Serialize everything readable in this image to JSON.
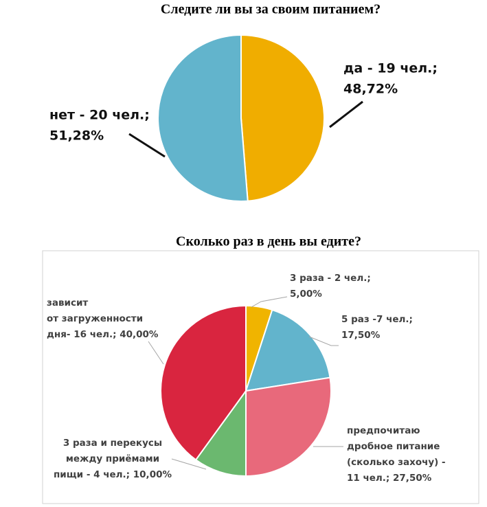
{
  "chart_data": [
    {
      "type": "pie",
      "title": "Следите ли вы за своим питанием?",
      "categories": [
        "да",
        "нет"
      ],
      "values": [
        48.72,
        51.28
      ],
      "value_labels": [
        [
          "да - 19 чел.;",
          "48,72%"
        ],
        [
          "нет - 20 чел.;",
          "51,28%"
        ]
      ],
      "colors": [
        "#f0ad00",
        "#62b4cc"
      ]
    },
    {
      "type": "pie",
      "title": "Сколько раз в день вы едите?",
      "categories": [
        "3 раза",
        "5 раз",
        "предпочитаю дробное питание (сколько захочу)",
        "3 раза и перекусы между приёмами пищи",
        "зависит от загруженности дня"
      ],
      "values": [
        5.0,
        17.5,
        27.5,
        10.0,
        40.0
      ],
      "value_labels": [
        [
          "3 раза - 2 чел.;",
          "5,00%"
        ],
        [
          "5 раз -7 чел.;",
          "17,50%"
        ],
        [
          "предпочитаю",
          "дробное питание",
          "(сколько захочу) -",
          "11 чел.; 27,50%"
        ],
        [
          "3 раза и перекусы",
          "между приёмами",
          "пищи - 4 чел.; 10,00%"
        ],
        [
          "зависит",
          "от загруженности",
          "дня- 16 чел.; 40,00%"
        ]
      ],
      "colors": [
        "#f0b400",
        "#62b4cc",
        "#e8697b",
        "#6bb86f",
        "#d9253f"
      ]
    }
  ]
}
